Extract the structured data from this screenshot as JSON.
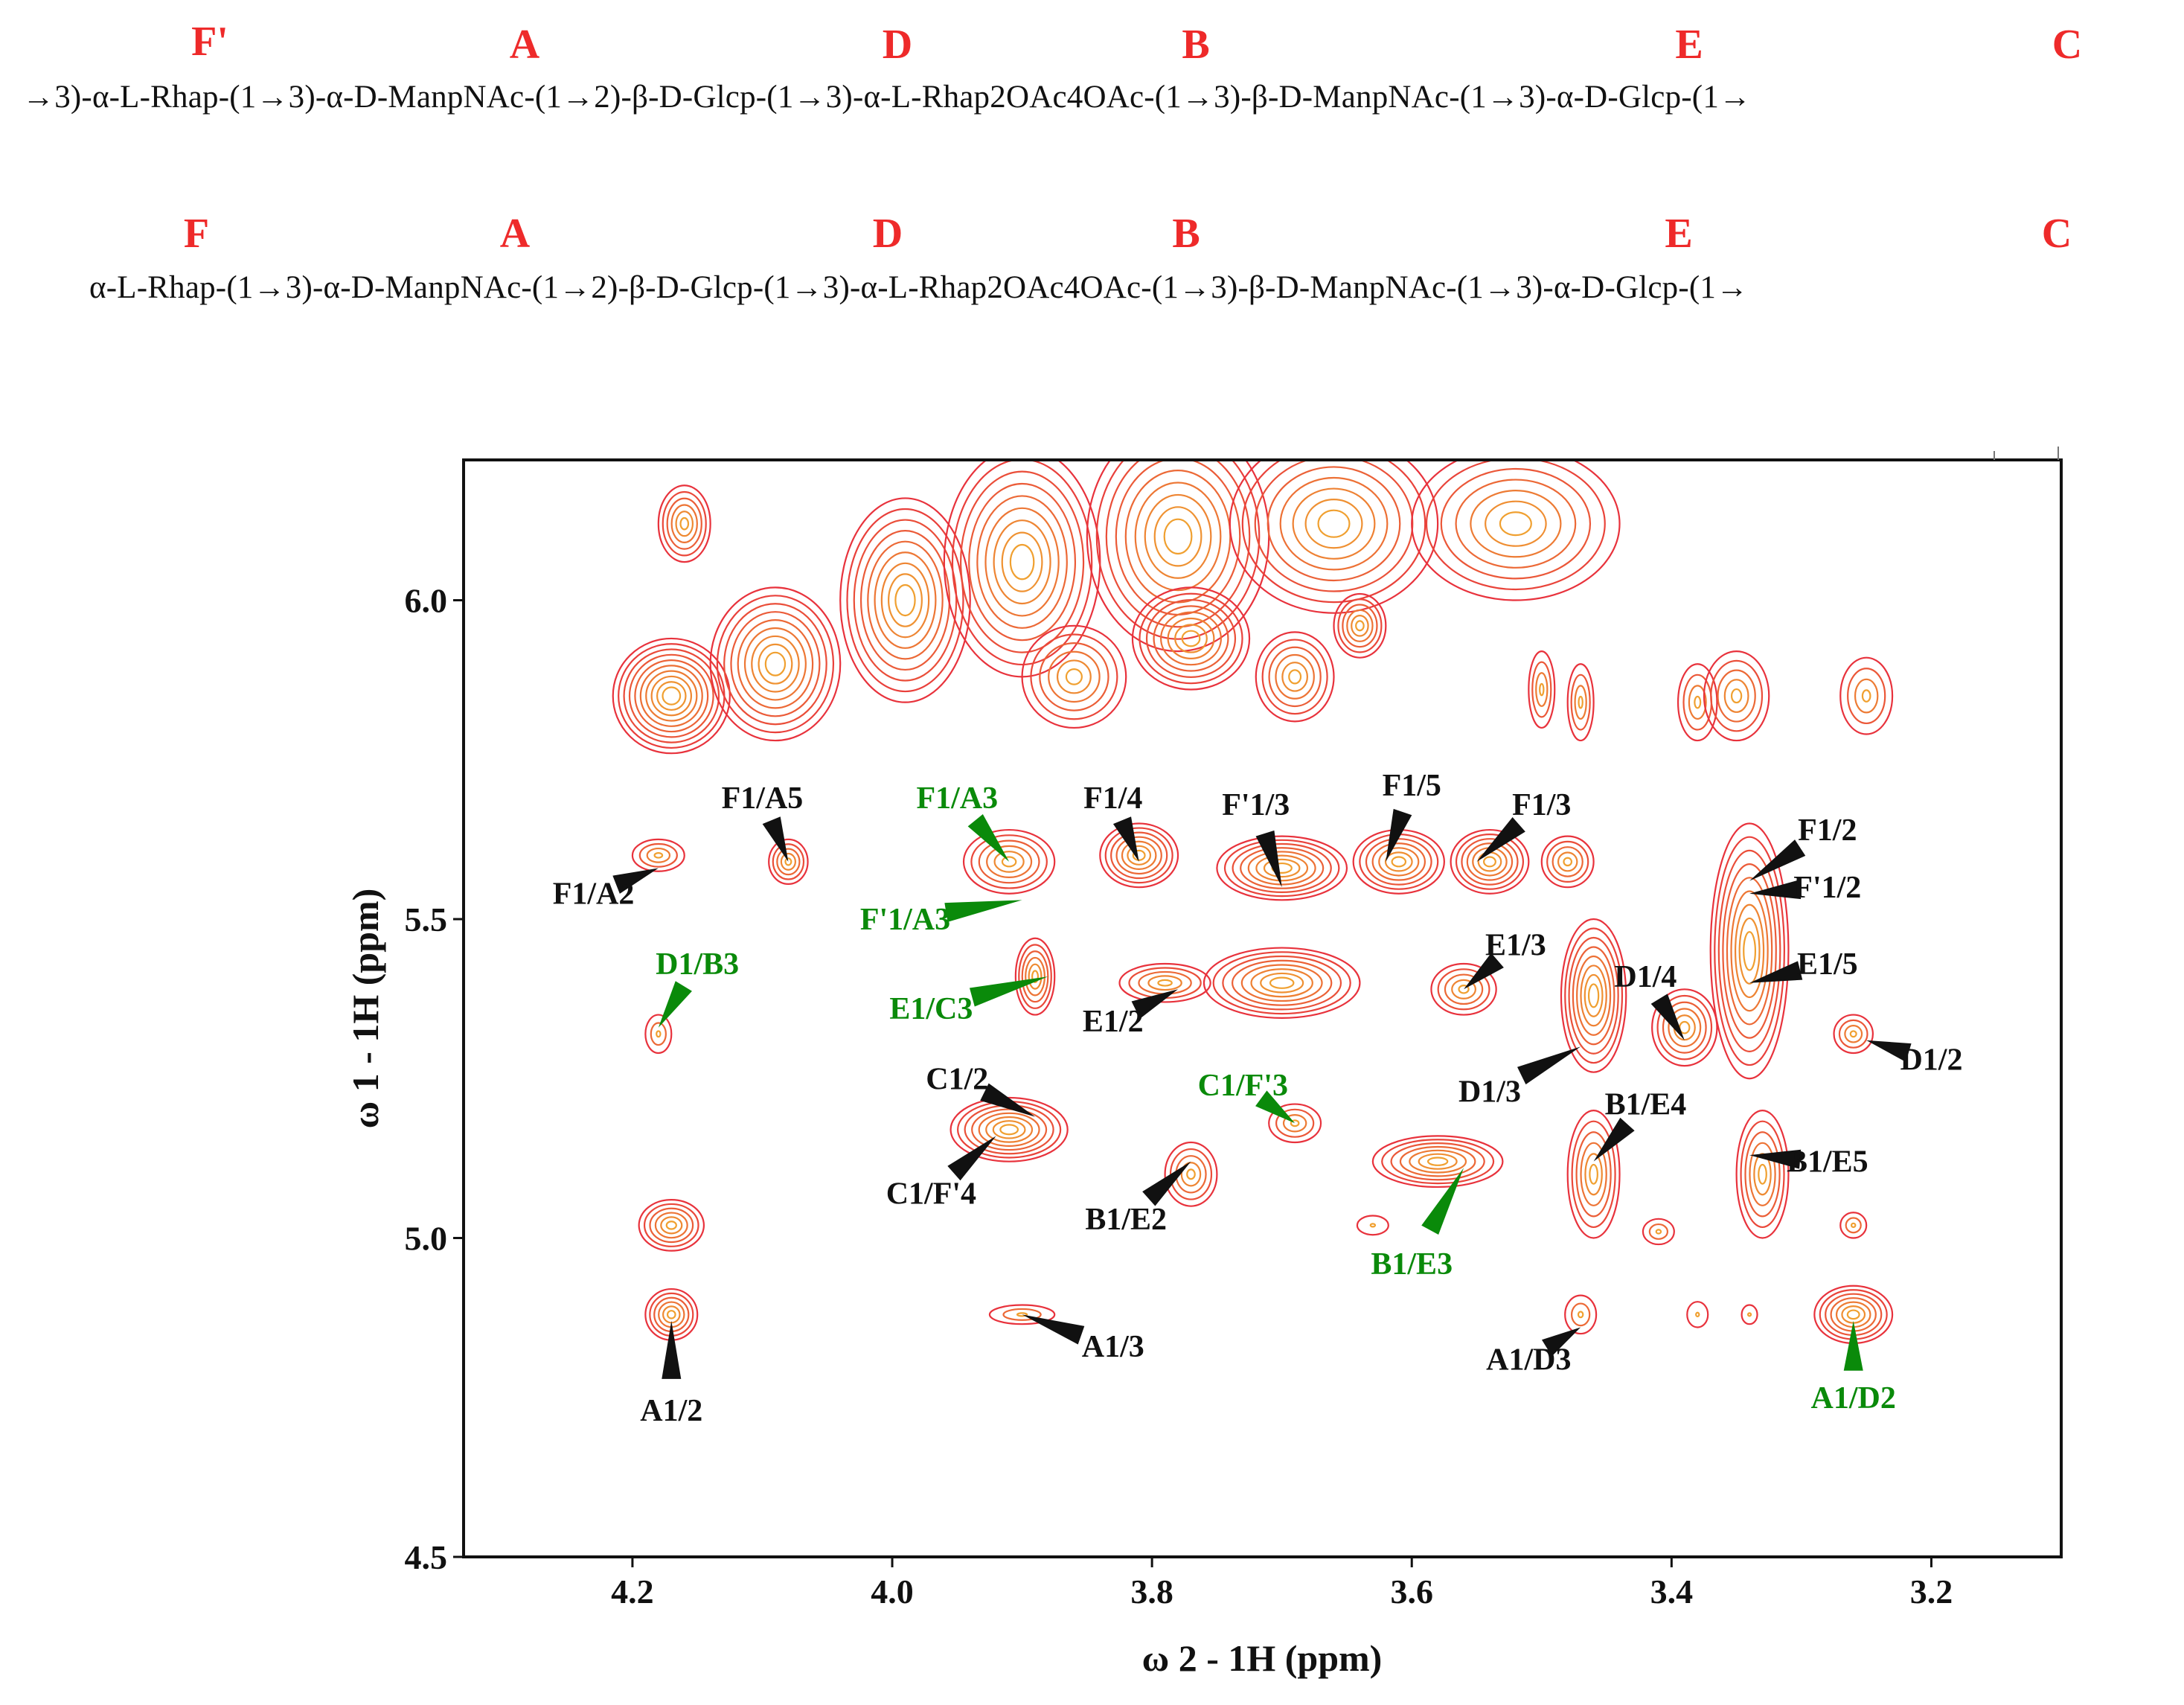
{
  "sequences": [
    {
      "residues": [
        "F'",
        "A",
        "D",
        "B",
        "E",
        "C"
      ],
      "text": "→3)-α-L-Rhap-(1→3)-α-D-ManpNAc-(1→2)-β-D-Glcp-(1→3)-α-L-Rhap2OAc4OAc-(1→3)-β-D-ManpNAc-(1→3)-α-D-Glcp-(1→"
    },
    {
      "residues": [
        "F",
        "A",
        "D",
        "B",
        "E",
        "C"
      ],
      "text": "α-L-Rhap-(1→3)-α-D-ManpNAc-(1→2)-β-D-Glcp-(1→3)-α-L-Rhap2OAc4OAc-(1→3)-β-D-ManpNAc-(1→3)-α-D-Glcp-(1→"
    }
  ],
  "colors": {
    "residue_letters": "#ee2a2a",
    "contour_outer": "#e8323c",
    "contour_inner": "#f0a030",
    "label_black": "#111111",
    "label_green": "#0a8a0a"
  },
  "chart_data": {
    "type": "2D NMR contour",
    "xlabel": "ω 2 - 1H  (ppm)",
    "ylabel": "ω 1 - 1H  (ppm)",
    "xlim": [
      4.33,
      3.1
    ],
    "ylim": [
      4.5,
      6.22
    ],
    "xticks": [
      "4.2",
      "4.0",
      "3.8",
      "3.6",
      "3.4",
      "3.2"
    ],
    "xtick_values": [
      4.2,
      4.0,
      3.8,
      3.6,
      3.4,
      3.2
    ],
    "yticks": [
      "6.0",
      "5.5",
      "5.0",
      "4.5"
    ],
    "ytick_values": [
      6.0,
      5.5,
      5.0,
      4.5
    ],
    "diagonal_band": [
      {
        "x": 4.17,
        "y": 5.85,
        "rx": 0.045,
        "ry": 0.09,
        "levels": 10
      },
      {
        "x": 4.09,
        "y": 5.9,
        "rx": 0.05,
        "ry": 0.12,
        "levels": 9
      },
      {
        "x": 3.99,
        "y": 6.0,
        "rx": 0.05,
        "ry": 0.16,
        "levels": 9
      },
      {
        "x": 3.9,
        "y": 6.06,
        "rx": 0.06,
        "ry": 0.18,
        "levels": 9
      },
      {
        "x": 3.78,
        "y": 6.1,
        "rx": 0.07,
        "ry": 0.18,
        "levels": 9
      },
      {
        "x": 3.66,
        "y": 6.12,
        "rx": 0.08,
        "ry": 0.14,
        "levels": 8
      },
      {
        "x": 3.52,
        "y": 6.12,
        "rx": 0.08,
        "ry": 0.12,
        "levels": 7
      },
      {
        "x": 4.16,
        "y": 6.12,
        "rx": 0.02,
        "ry": 0.06,
        "levels": 6
      },
      {
        "x": 3.86,
        "y": 5.88,
        "rx": 0.04,
        "ry": 0.08,
        "levels": 6
      },
      {
        "x": 3.77,
        "y": 5.94,
        "rx": 0.045,
        "ry": 0.08,
        "levels": 8
      },
      {
        "x": 3.69,
        "y": 5.88,
        "rx": 0.03,
        "ry": 0.07,
        "levels": 6
      },
      {
        "x": 3.64,
        "y": 5.96,
        "rx": 0.02,
        "ry": 0.05,
        "levels": 6
      },
      {
        "x": 3.5,
        "y": 5.86,
        "rx": 0.01,
        "ry": 0.06,
        "levels": 4
      },
      {
        "x": 3.47,
        "y": 5.84,
        "rx": 0.01,
        "ry": 0.06,
        "levels": 4
      },
      {
        "x": 3.38,
        "y": 5.84,
        "rx": 0.015,
        "ry": 0.06,
        "levels": 4
      },
      {
        "x": 3.35,
        "y": 5.85,
        "rx": 0.025,
        "ry": 0.07,
        "levels": 5
      },
      {
        "x": 3.25,
        "y": 5.85,
        "rx": 0.02,
        "ry": 0.06,
        "levels": 4
      }
    ],
    "cross_peaks": [
      {
        "x": 4.18,
        "y": 5.6,
        "rx": 0.02,
        "ry": 0.025,
        "levels": 4
      },
      {
        "x": 4.08,
        "y": 5.59,
        "rx": 0.015,
        "ry": 0.035,
        "levels": 5
      },
      {
        "x": 3.91,
        "y": 5.59,
        "rx": 0.035,
        "ry": 0.05,
        "levels": 6
      },
      {
        "x": 3.81,
        "y": 5.6,
        "rx": 0.03,
        "ry": 0.05,
        "levels": 7
      },
      {
        "x": 3.7,
        "y": 5.58,
        "rx": 0.05,
        "ry": 0.05,
        "levels": 8
      },
      {
        "x": 3.61,
        "y": 5.59,
        "rx": 0.035,
        "ry": 0.05,
        "levels": 7
      },
      {
        "x": 3.54,
        "y": 5.59,
        "rx": 0.03,
        "ry": 0.05,
        "levels": 7
      },
      {
        "x": 3.48,
        "y": 5.59,
        "rx": 0.02,
        "ry": 0.04,
        "levels": 5
      },
      {
        "x": 3.89,
        "y": 5.41,
        "rx": 0.015,
        "ry": 0.06,
        "levels": 6
      },
      {
        "x": 3.79,
        "y": 5.4,
        "rx": 0.035,
        "ry": 0.03,
        "levels": 5
      },
      {
        "x": 3.7,
        "y": 5.4,
        "rx": 0.06,
        "ry": 0.055,
        "levels": 8
      },
      {
        "x": 3.56,
        "y": 5.39,
        "rx": 0.025,
        "ry": 0.04,
        "levels": 5
      },
      {
        "x": 3.46,
        "y": 5.38,
        "rx": 0.025,
        "ry": 0.12,
        "levels": 8
      },
      {
        "x": 3.39,
        "y": 5.33,
        "rx": 0.025,
        "ry": 0.06,
        "levels": 6
      },
      {
        "x": 3.34,
        "y": 5.45,
        "rx": 0.03,
        "ry": 0.2,
        "levels": 9
      },
      {
        "x": 3.26,
        "y": 5.32,
        "rx": 0.015,
        "ry": 0.03,
        "levels": 4
      },
      {
        "x": 4.18,
        "y": 5.32,
        "rx": 0.01,
        "ry": 0.03,
        "levels": 3
      },
      {
        "x": 3.91,
        "y": 5.17,
        "rx": 0.045,
        "ry": 0.05,
        "levels": 8
      },
      {
        "x": 3.77,
        "y": 5.1,
        "rx": 0.02,
        "ry": 0.05,
        "levels": 5
      },
      {
        "x": 3.69,
        "y": 5.18,
        "rx": 0.02,
        "ry": 0.03,
        "levels": 4
      },
      {
        "x": 3.58,
        "y": 5.12,
        "rx": 0.05,
        "ry": 0.04,
        "levels": 7
      },
      {
        "x": 3.46,
        "y": 5.1,
        "rx": 0.02,
        "ry": 0.1,
        "levels": 6
      },
      {
        "x": 3.33,
        "y": 5.1,
        "rx": 0.02,
        "ry": 0.1,
        "levels": 6
      },
      {
        "x": 4.17,
        "y": 5.02,
        "rx": 0.025,
        "ry": 0.04,
        "levels": 6
      },
      {
        "x": 4.17,
        "y": 4.88,
        "rx": 0.02,
        "ry": 0.04,
        "levels": 6
      },
      {
        "x": 3.26,
        "y": 4.88,
        "rx": 0.03,
        "ry": 0.045,
        "levels": 7
      },
      {
        "x": 3.9,
        "y": 4.88,
        "rx": 0.025,
        "ry": 0.015,
        "levels": 3
      },
      {
        "x": 3.47,
        "y": 4.88,
        "rx": 0.012,
        "ry": 0.03,
        "levels": 3
      },
      {
        "x": 3.63,
        "y": 5.02,
        "rx": 0.012,
        "ry": 0.015,
        "levels": 2
      },
      {
        "x": 3.41,
        "y": 5.01,
        "rx": 0.012,
        "ry": 0.02,
        "levels": 3
      },
      {
        "x": 3.26,
        "y": 5.02,
        "rx": 0.01,
        "ry": 0.02,
        "levels": 3
      },
      {
        "x": 3.38,
        "y": 4.88,
        "rx": 0.008,
        "ry": 0.02,
        "levels": 2
      },
      {
        "x": 3.34,
        "y": 4.88,
        "rx": 0.006,
        "ry": 0.015,
        "levels": 2
      }
    ],
    "labels": [
      {
        "text": "F1/A5",
        "color": "black",
        "lx": 4.1,
        "ly": 5.69,
        "tx": 4.08,
        "ty": 5.59
      },
      {
        "text": "F1/A2",
        "color": "black",
        "lx": 4.23,
        "ly": 5.54,
        "tx": 4.18,
        "ty": 5.58
      },
      {
        "text": "F1/A3",
        "color": "green",
        "lx": 3.95,
        "ly": 5.69,
        "tx": 3.91,
        "ty": 5.59
      },
      {
        "text": "F'1/A3",
        "color": "green",
        "lx": 3.99,
        "ly": 5.5,
        "tx": 3.9,
        "ty": 5.53
      },
      {
        "text": "E1/C3",
        "color": "green",
        "lx": 3.97,
        "ly": 5.36,
        "tx": 3.88,
        "ty": 5.41
      },
      {
        "text": "F1/4",
        "color": "black",
        "lx": 3.83,
        "ly": 5.69,
        "tx": 3.81,
        "ty": 5.59
      },
      {
        "text": "F'1/3",
        "color": "black",
        "lx": 3.72,
        "ly": 5.68,
        "tx": 3.7,
        "ty": 5.55
      },
      {
        "text": "F1/5",
        "color": "black",
        "lx": 3.6,
        "ly": 5.71,
        "tx": 3.62,
        "ty": 5.59
      },
      {
        "text": "F1/3",
        "color": "black",
        "lx": 3.5,
        "ly": 5.68,
        "tx": 3.55,
        "ty": 5.59
      },
      {
        "text": "E1/2",
        "color": "black",
        "lx": 3.83,
        "ly": 5.34,
        "tx": 3.78,
        "ty": 5.39
      },
      {
        "text": "E1/3",
        "color": "black",
        "lx": 3.52,
        "ly": 5.46,
        "tx": 3.56,
        "ty": 5.39
      },
      {
        "text": "D1/B3",
        "color": "green",
        "lx": 4.15,
        "ly": 5.43,
        "tx": 4.18,
        "ty": 5.33
      },
      {
        "text": "D1/4",
        "color": "black",
        "lx": 3.42,
        "ly": 5.41,
        "tx": 3.39,
        "ty": 5.31
      },
      {
        "text": "D1/3",
        "color": "black",
        "lx": 3.54,
        "ly": 5.23,
        "tx": 3.47,
        "ty": 5.3
      },
      {
        "text": "F1/2",
        "color": "black",
        "lx": 3.28,
        "ly": 5.64,
        "tx": 3.34,
        "ty": 5.56
      },
      {
        "text": "F'1/2",
        "color": "black",
        "lx": 3.28,
        "ly": 5.55,
        "tx": 3.34,
        "ty": 5.54
      },
      {
        "text": "E1/5",
        "color": "black",
        "lx": 3.28,
        "ly": 5.43,
        "tx": 3.34,
        "ty": 5.4
      },
      {
        "text": "D1/2",
        "color": "black",
        "lx": 3.2,
        "ly": 5.28,
        "tx": 3.25,
        "ty": 5.31
      },
      {
        "text": "C1/2",
        "color": "black",
        "lx": 3.95,
        "ly": 5.25,
        "tx": 3.89,
        "ty": 5.19
      },
      {
        "text": "C1/F'4",
        "color": "black",
        "lx": 3.97,
        "ly": 5.07,
        "tx": 3.92,
        "ty": 5.16
      },
      {
        "text": "C1/F'3",
        "color": "green",
        "lx": 3.73,
        "ly": 5.24,
        "tx": 3.69,
        "ty": 5.18
      },
      {
        "text": "B1/E2",
        "color": "black",
        "lx": 3.82,
        "ly": 5.03,
        "tx": 3.77,
        "ty": 5.12
      },
      {
        "text": "B1/E3",
        "color": "green",
        "lx": 3.6,
        "ly": 4.96,
        "tx": 3.56,
        "ty": 5.11
      },
      {
        "text": "B1/E4",
        "color": "black",
        "lx": 3.42,
        "ly": 5.21,
        "tx": 3.46,
        "ty": 5.12
      },
      {
        "text": "B1/E5",
        "color": "black",
        "lx": 3.28,
        "ly": 5.12,
        "tx": 3.34,
        "ty": 5.13
      },
      {
        "text": "A1/2",
        "color": "black",
        "lx": 4.17,
        "ly": 4.73,
        "tx": 4.17,
        "ty": 4.87
      },
      {
        "text": "A1/3",
        "color": "black",
        "lx": 3.83,
        "ly": 4.83,
        "tx": 3.9,
        "ty": 4.88
      },
      {
        "text": "A1/D3",
        "color": "black",
        "lx": 3.51,
        "ly": 4.81,
        "tx": 3.47,
        "ty": 4.86
      },
      {
        "text": "A1/D2",
        "color": "green",
        "lx": 3.26,
        "ly": 4.75,
        "tx": 3.26,
        "ty": 4.87
      }
    ]
  }
}
